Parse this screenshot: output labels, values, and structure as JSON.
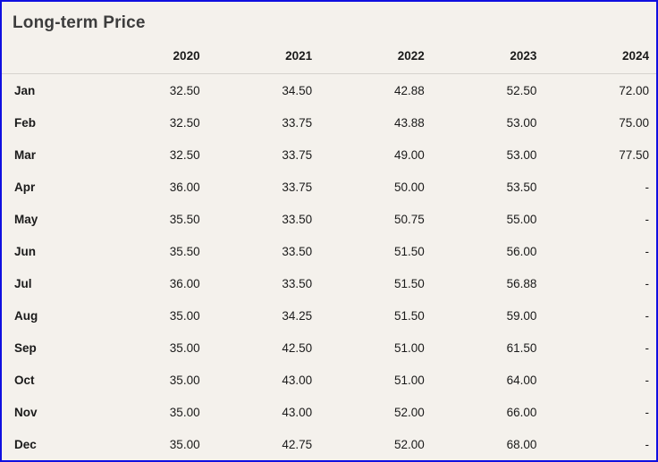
{
  "panel": {
    "title": "Long-term Price"
  },
  "colors": {
    "background": "#f4f1ec",
    "border": "#0f0fe0",
    "title_text": "#3d3d3d",
    "body_text": "#1a1a1a",
    "header_divider": "#d6d3ce"
  },
  "chart_data": {
    "type": "table",
    "title": "Long-term Price",
    "columns": [
      "",
      "2020",
      "2021",
      "2022",
      "2023",
      "2024"
    ],
    "rows": [
      {
        "month": "Jan",
        "values": [
          "32.50",
          "34.50",
          "42.88",
          "52.50",
          "72.00"
        ]
      },
      {
        "month": "Feb",
        "values": [
          "32.50",
          "33.75",
          "43.88",
          "53.00",
          "75.00"
        ]
      },
      {
        "month": "Mar",
        "values": [
          "32.50",
          "33.75",
          "49.00",
          "53.00",
          "77.50"
        ]
      },
      {
        "month": "Apr",
        "values": [
          "36.00",
          "33.75",
          "50.00",
          "53.50",
          "-"
        ]
      },
      {
        "month": "May",
        "values": [
          "35.50",
          "33.50",
          "50.75",
          "55.00",
          "-"
        ]
      },
      {
        "month": "Jun",
        "values": [
          "35.50",
          "33.50",
          "51.50",
          "56.00",
          "-"
        ]
      },
      {
        "month": "Jul",
        "values": [
          "36.00",
          "33.50",
          "51.50",
          "56.88",
          "-"
        ]
      },
      {
        "month": "Aug",
        "values": [
          "35.00",
          "34.25",
          "51.50",
          "59.00",
          "-"
        ]
      },
      {
        "month": "Sep",
        "values": [
          "35.00",
          "42.50",
          "51.00",
          "61.50",
          "-"
        ]
      },
      {
        "month": "Oct",
        "values": [
          "35.00",
          "43.00",
          "51.00",
          "64.00",
          "-"
        ]
      },
      {
        "month": "Nov",
        "values": [
          "35.00",
          "43.00",
          "52.00",
          "66.00",
          "-"
        ]
      },
      {
        "month": "Dec",
        "values": [
          "35.00",
          "42.75",
          "52.00",
          "68.00",
          "-"
        ]
      }
    ]
  }
}
